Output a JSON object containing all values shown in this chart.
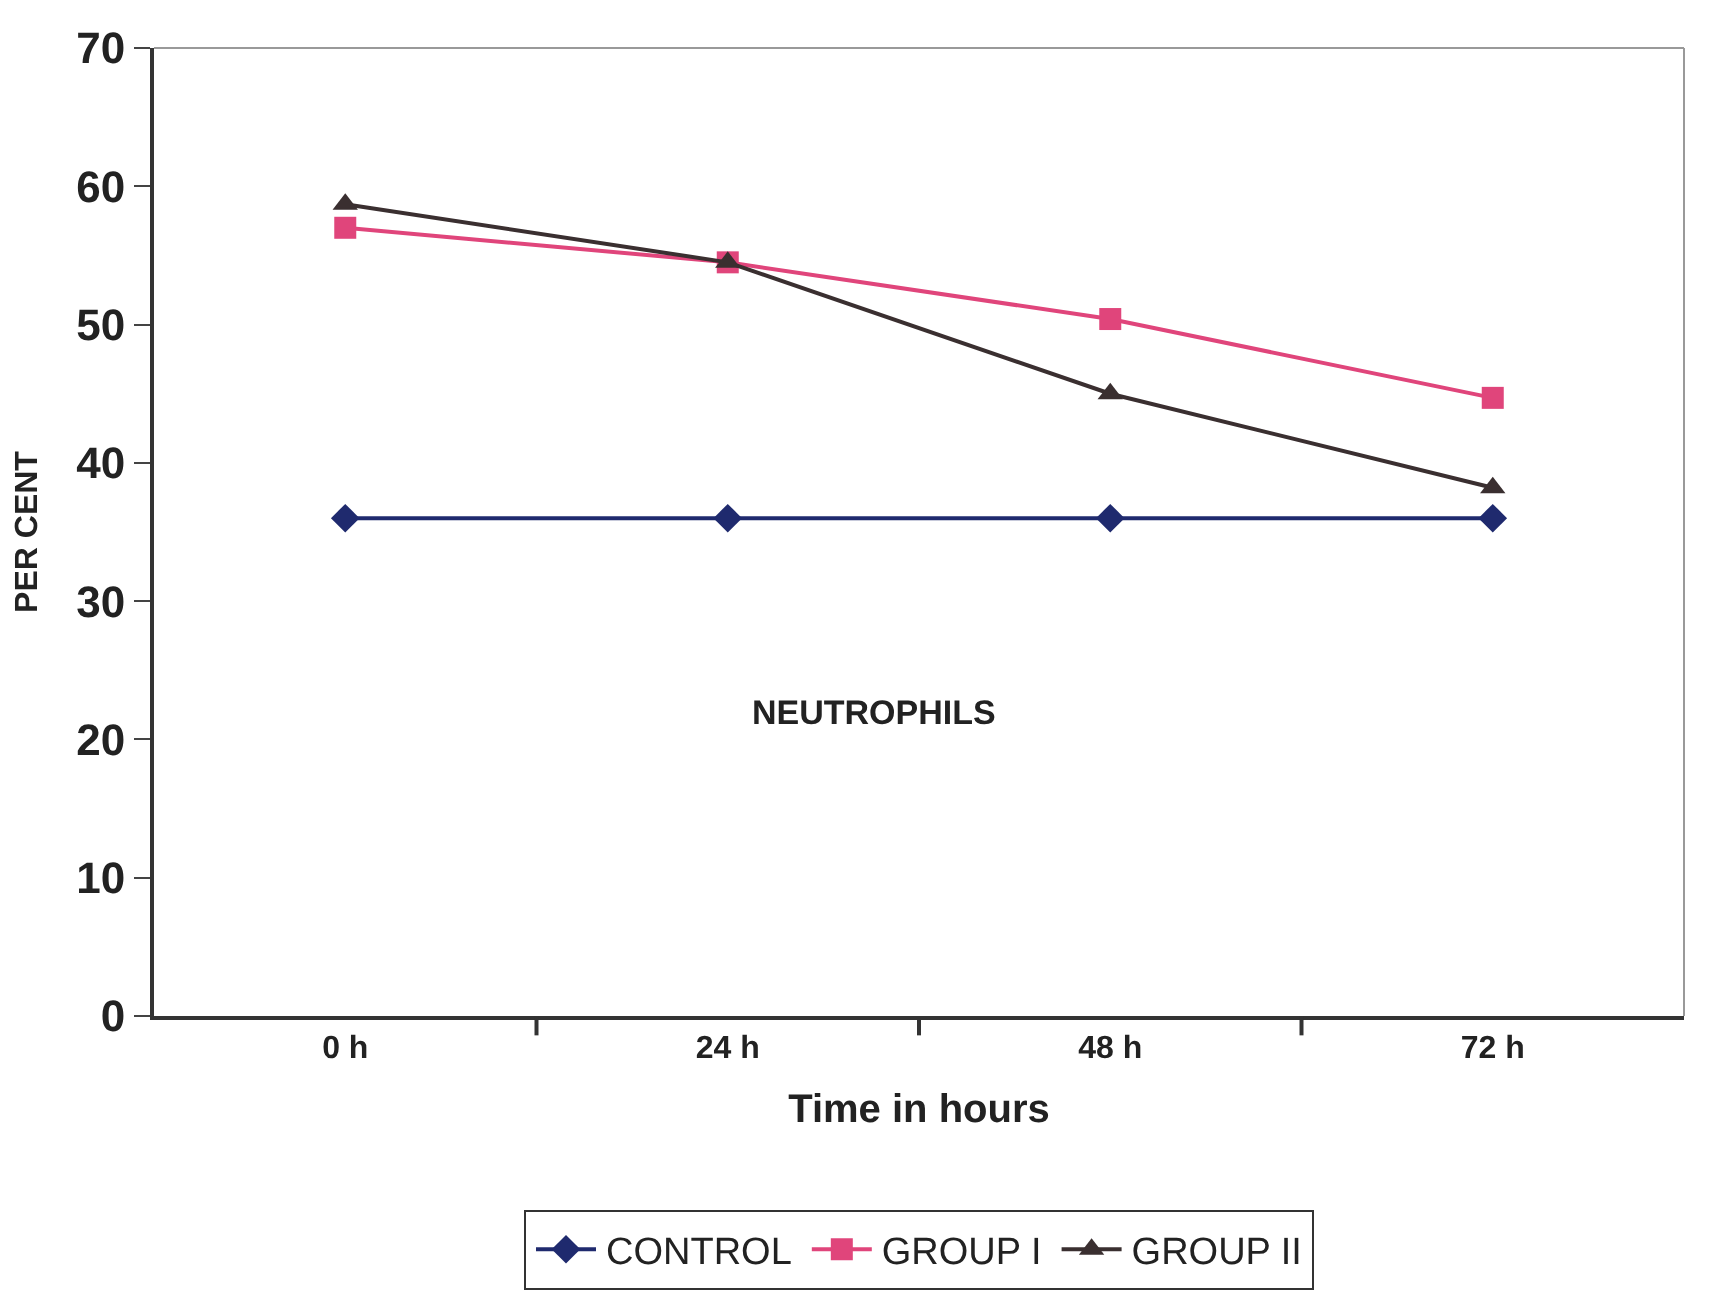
{
  "chart_data": {
    "type": "line",
    "xlabel": "Time in hours",
    "ylabel": "PER CENT",
    "categories": [
      "0 h",
      "24 h",
      "48 h",
      "72 h"
    ],
    "series": [
      {
        "name": "CONTROL",
        "color": "#1f2a6e",
        "marker": "diamond",
        "values": [
          36,
          36,
          36,
          36
        ]
      },
      {
        "name": "GROUP I",
        "color": "#e0457b",
        "marker": "square",
        "values": [
          57.0,
          54.5,
          50.4,
          44.7
        ]
      },
      {
        "name": "GROUP II",
        "color": "#3a2f30",
        "marker": "triangle",
        "values": [
          58.7,
          54.5,
          45.0,
          38.2
        ]
      }
    ],
    "ylim": [
      0,
      70
    ],
    "yticks": [
      0,
      10,
      20,
      30,
      40,
      50,
      60,
      70
    ],
    "annotations": [
      "NEUTROPHILS"
    ],
    "legend": "bottom"
  }
}
